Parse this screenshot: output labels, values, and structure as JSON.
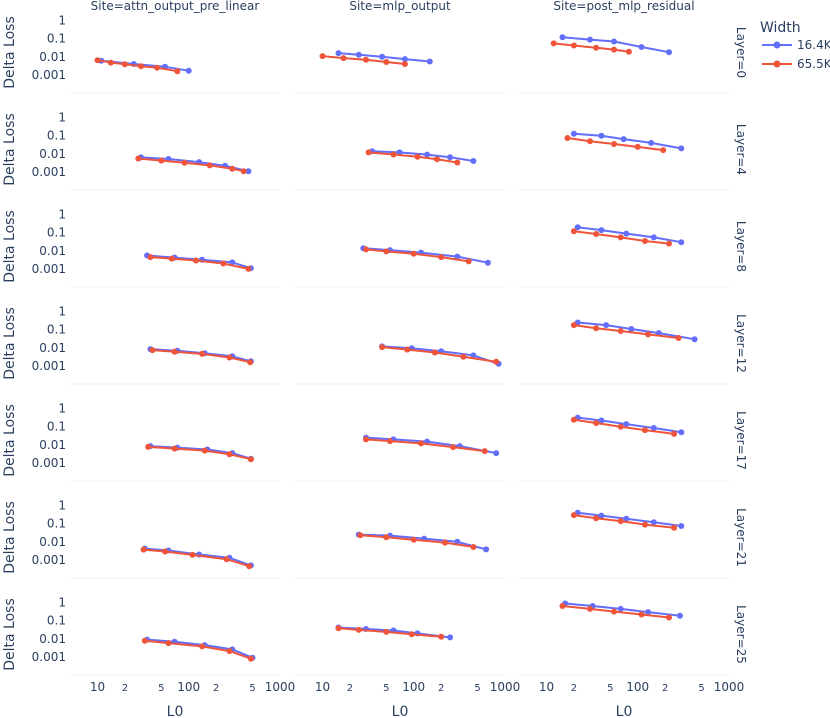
{
  "chart_data": {
    "type": "line",
    "title": "",
    "xlabel": "L0",
    "ylabel": "Delta Loss",
    "x_scale": "log",
    "y_scale": "log",
    "xlim": [
      5,
      1000
    ],
    "ylim": [
      0.0001,
      3
    ],
    "x_ticks": [
      {
        "value": 10,
        "label": "10"
      },
      {
        "value": 20,
        "label": "2"
      },
      {
        "value": 50,
        "label": "5"
      },
      {
        "value": 100,
        "label": "100"
      },
      {
        "value": 200,
        "label": "2"
      },
      {
        "value": 500,
        "label": "5"
      },
      {
        "value": 1000,
        "label": "1000"
      }
    ],
    "y_ticks": [
      {
        "value": 1,
        "label": "1"
      },
      {
        "value": 0.1,
        "label": "0.1"
      },
      {
        "value": 0.01,
        "label": "0.01"
      },
      {
        "value": 0.001,
        "label": "0.001"
      }
    ],
    "legend": {
      "title": "Width",
      "placement": "top-right",
      "entries": [
        {
          "name": "16.4K",
          "color": "#636efa"
        },
        {
          "name": "65.5K",
          "color": "#ef553b"
        }
      ]
    },
    "columns": [
      "Site=attn_output_pre_linear",
      "Site=mlp_output",
      "Site=post_mlp_residual"
    ],
    "rows": [
      "Layer=0",
      "Layer=4",
      "Layer=8",
      "Layer=12",
      "Layer=17",
      "Layer=21",
      "Layer=25"
    ],
    "panels": [
      [
        {
          "series": [
            {
              "name": "16.4K",
              "x": [
                11,
                25,
                55,
                100
              ],
              "y": [
                0.006,
                0.004,
                0.0028,
                0.0017
              ]
            },
            {
              "name": "65.5K",
              "x": [
                10,
                14,
                20,
                30,
                45,
                75
              ],
              "y": [
                0.0065,
                0.0048,
                0.0039,
                0.003,
                0.0025,
                0.0016
              ]
            }
          ]
        },
        {
          "series": [
            {
              "name": "16.4K",
              "x": [
                15,
                25,
                45,
                80,
                150
              ],
              "y": [
                0.016,
                0.013,
                0.01,
                0.0075,
                0.0055
              ]
            },
            {
              "name": "65.5K",
              "x": [
                10,
                17,
                30,
                50,
                80
              ],
              "y": [
                0.011,
                0.0085,
                0.0068,
                0.0052,
                0.004
              ]
            }
          ]
        },
        {
          "series": [
            {
              "name": "16.4K",
              "x": [
                15,
                30,
                55,
                110,
                220
              ],
              "y": [
                0.12,
                0.09,
                0.07,
                0.035,
                0.018
              ]
            },
            {
              "name": "65.5K",
              "x": [
                12,
                20,
                35,
                55,
                80
              ],
              "y": [
                0.055,
                0.042,
                0.032,
                0.025,
                0.019
              ]
            }
          ]
        }
      ],
      [
        {
          "series": [
            {
              "name": "16.4K",
              "x": [
                30,
                60,
                130,
                250,
                450
              ],
              "y": [
                0.0063,
                0.0052,
                0.0035,
                0.0022,
                0.0011
              ]
            },
            {
              "name": "65.5K",
              "x": [
                28,
                50,
                90,
                170,
                300,
                400
              ],
              "y": [
                0.0055,
                0.0042,
                0.0032,
                0.0023,
                0.0015,
                0.0011
              ]
            }
          ]
        },
        {
          "series": [
            {
              "name": "16.4K",
              "x": [
                35,
                70,
                140,
                250,
                450
              ],
              "y": [
                0.014,
                0.012,
                0.009,
                0.0065,
                0.004
              ]
            },
            {
              "name": "65.5K",
              "x": [
                32,
                60,
                110,
                180,
                300
              ],
              "y": [
                0.012,
                0.0092,
                0.0068,
                0.005,
                0.0033
              ]
            }
          ]
        },
        {
          "series": [
            {
              "name": "16.4K",
              "x": [
                20,
                40,
                70,
                140,
                300
              ],
              "y": [
                0.13,
                0.1,
                0.065,
                0.04,
                0.02
              ]
            },
            {
              "name": "65.5K",
              "x": [
                17,
                30,
                55,
                100,
                190
              ],
              "y": [
                0.075,
                0.05,
                0.035,
                0.024,
                0.016
              ]
            }
          ]
        }
      ],
      [
        {
          "series": [
            {
              "name": "16.4K",
              "x": [
                35,
                70,
                140,
                300,
                480
              ],
              "y": [
                0.0055,
                0.0042,
                0.0032,
                0.0023,
                0.0011
              ]
            },
            {
              "name": "65.5K",
              "x": [
                38,
                65,
                120,
                240,
                450
              ],
              "y": [
                0.0045,
                0.0037,
                0.0029,
                0.002,
                0.001
              ]
            }
          ]
        },
        {
          "series": [
            {
              "name": "16.4K",
              "x": [
                28,
                55,
                120,
                300,
                650
              ],
              "y": [
                0.014,
                0.011,
                0.008,
                0.0048,
                0.0022
              ]
            },
            {
              "name": "65.5K",
              "x": [
                30,
                50,
                100,
                200,
                400
              ],
              "y": [
                0.012,
                0.0093,
                0.0068,
                0.0045,
                0.0026
              ]
            }
          ]
        },
        {
          "series": [
            {
              "name": "16.4K",
              "x": [
                22,
                40,
                75,
                150,
                300
              ],
              "y": [
                0.2,
                0.14,
                0.09,
                0.055,
                0.03
              ]
            },
            {
              "name": "65.5K",
              "x": [
                20,
                35,
                65,
                120,
                220
              ],
              "y": [
                0.12,
                0.085,
                0.055,
                0.035,
                0.025
              ]
            }
          ]
        }
      ],
      [
        {
          "series": [
            {
              "name": "16.4K",
              "x": [
                38,
                75,
                150,
                300,
                480
              ],
              "y": [
                0.0085,
                0.0068,
                0.005,
                0.0034,
                0.0018
              ]
            },
            {
              "name": "65.5K",
              "x": [
                40,
                70,
                140,
                280,
                470
              ],
              "y": [
                0.0075,
                0.006,
                0.0046,
                0.0029,
                0.0016
              ]
            }
          ]
        },
        {
          "series": [
            {
              "name": "16.4K",
              "x": [
                45,
                95,
                200,
                450,
                850
              ],
              "y": [
                0.012,
                0.0095,
                0.0065,
                0.0038,
                0.0013
              ]
            },
            {
              "name": "65.5K",
              "x": [
                45,
                85,
                170,
                350,
                800
              ],
              "y": [
                0.011,
                0.008,
                0.0055,
                0.0032,
                0.0017
              ]
            }
          ]
        },
        {
          "series": [
            {
              "name": "16.4K",
              "x": [
                22,
                45,
                85,
                170,
                420
              ],
              "y": [
                0.25,
                0.18,
                0.11,
                0.065,
                0.03
              ]
            },
            {
              "name": "65.5K",
              "x": [
                20,
                35,
                65,
                130,
                280
              ],
              "y": [
                0.18,
                0.12,
                0.085,
                0.055,
                0.035
              ]
            }
          ]
        }
      ],
      [
        {
          "series": [
            {
              "name": "16.4K",
              "x": [
                38,
                75,
                160,
                300,
                480
              ],
              "y": [
                0.0085,
                0.007,
                0.0055,
                0.0035,
                0.0017
              ]
            },
            {
              "name": "65.5K",
              "x": [
                36,
                70,
                150,
                280,
                480
              ],
              "y": [
                0.0077,
                0.0062,
                0.0048,
                0.003,
                0.0016
              ]
            }
          ]
        },
        {
          "series": [
            {
              "name": "16.4K",
              "x": [
                30,
                60,
                140,
                320,
                800
              ],
              "y": [
                0.025,
                0.02,
                0.015,
                0.0085,
                0.0035
              ]
            },
            {
              "name": "65.5K",
              "x": [
                30,
                55,
                120,
                270,
                600
              ],
              "y": [
                0.02,
                0.016,
                0.012,
                0.0075,
                0.0045
              ]
            }
          ]
        },
        {
          "series": [
            {
              "name": "16.4K",
              "x": [
                22,
                40,
                75,
                150,
                300
              ],
              "y": [
                0.32,
                0.22,
                0.14,
                0.085,
                0.05
              ]
            },
            {
              "name": "65.5K",
              "x": [
                20,
                35,
                65,
                120,
                250
              ],
              "y": [
                0.24,
                0.16,
                0.1,
                0.065,
                0.04
              ]
            }
          ]
        }
      ],
      [
        {
          "series": [
            {
              "name": "16.4K",
              "x": [
                33,
                60,
                130,
                280,
                480
              ],
              "y": [
                0.0042,
                0.0033,
                0.002,
                0.0013,
                0.0005
              ]
            },
            {
              "name": "65.5K",
              "x": [
                32,
                55,
                110,
                260,
                460
              ],
              "y": [
                0.0037,
                0.0029,
                0.0019,
                0.0011,
                0.00045
              ]
            }
          ]
        },
        {
          "series": [
            {
              "name": "16.4K",
              "x": [
                25,
                55,
                130,
                300,
                620
              ],
              "y": [
                0.025,
                0.022,
                0.015,
                0.01,
                0.0038
              ]
            },
            {
              "name": "65.5K",
              "x": [
                26,
                50,
                100,
                220,
                450
              ],
              "y": [
                0.023,
                0.018,
                0.013,
                0.009,
                0.0052
              ]
            }
          ]
        },
        {
          "series": [
            {
              "name": "16.4K",
              "x": [
                22,
                40,
                75,
                150,
                300
              ],
              "y": [
                0.4,
                0.28,
                0.19,
                0.12,
                0.075
              ]
            },
            {
              "name": "65.5K",
              "x": [
                20,
                35,
                65,
                120,
                250
              ],
              "y": [
                0.3,
                0.2,
                0.14,
                0.09,
                0.06
              ]
            }
          ]
        }
      ],
      [
        {
          "series": [
            {
              "name": "16.4K",
              "x": [
                35,
                70,
                150,
                300,
                500
              ],
              "y": [
                0.009,
                0.0068,
                0.0045,
                0.0026,
                0.0009
              ]
            },
            {
              "name": "65.5K",
              "x": [
                33,
                60,
                140,
                280,
                480
              ],
              "y": [
                0.0078,
                0.0058,
                0.0038,
                0.0021,
                0.0008
              ]
            }
          ]
        },
        {
          "series": [
            {
              "name": "16.4K",
              "x": [
                15,
                30,
                60,
                110,
                250
              ],
              "y": [
                0.042,
                0.035,
                0.029,
                0.02,
                0.012
              ]
            },
            {
              "name": "65.5K",
              "x": [
                15,
                25,
                50,
                95,
                200
              ],
              "y": [
                0.038,
                0.031,
                0.024,
                0.018,
                0.013
              ]
            }
          ]
        },
        {
          "series": [
            {
              "name": "16.4K",
              "x": [
                16,
                32,
                65,
                130,
                290
              ],
              "y": [
                0.9,
                0.65,
                0.45,
                0.3,
                0.19
              ]
            },
            {
              "name": "65.5K",
              "x": [
                15,
                30,
                55,
                110,
                220
              ],
              "y": [
                0.65,
                0.45,
                0.32,
                0.22,
                0.15
              ]
            }
          ]
        }
      ]
    ]
  }
}
